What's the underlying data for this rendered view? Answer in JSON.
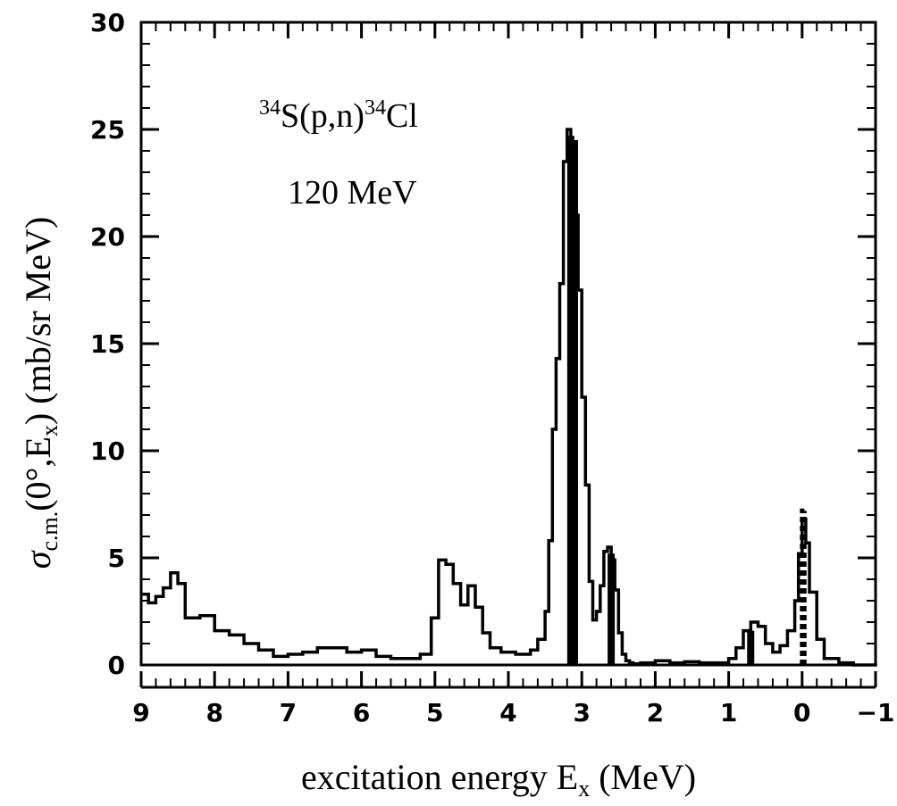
{
  "chart_data": {
    "type": "line",
    "xlabel": "excitation energy E",
    "xlabel_sub": "x",
    "xlabel_unit": " (MeV)",
    "ylabel_sigma": "σ",
    "ylabel_sub": "c.m.",
    "ylabel_rest": "(0°,E",
    "ylabel_sub2": "x",
    "ylabel_unit": ") (mb/sr MeV)",
    "annotation_reaction": {
      "sup1": "34",
      "mid": "S(p,n)",
      "sup2": "34",
      "end": "Cl"
    },
    "annotation_energy": "120 MeV",
    "xlim": [
      9,
      -1
    ],
    "ylim": [
      0,
      30
    ],
    "x_ticks": [
      9,
      8,
      7,
      6,
      5,
      4,
      3,
      2,
      1,
      0,
      -1
    ],
    "x_tick_labels": [
      "9",
      "8",
      "7",
      "6",
      "5",
      "4",
      "3",
      "2",
      "1",
      "0",
      "−1"
    ],
    "y_ticks": [
      0,
      5,
      10,
      15,
      20,
      25,
      30
    ],
    "y_tick_labels": [
      "0",
      "5",
      "10",
      "15",
      "20",
      "25",
      "30"
    ],
    "grid": false,
    "legend": "none",
    "series": [
      {
        "style": "histogram",
        "x": [
          9.0,
          8.9,
          8.8,
          8.7,
          8.6,
          8.5,
          8.4,
          8.2,
          8.0,
          7.8,
          7.6,
          7.4,
          7.2,
          7.0,
          6.8,
          6.6,
          6.4,
          6.2,
          6.0,
          5.8,
          5.6,
          5.4,
          5.2,
          5.05,
          4.95,
          4.85,
          4.75,
          4.65,
          4.55,
          4.45,
          4.35,
          4.25,
          4.1,
          3.9,
          3.7,
          3.6,
          3.5,
          3.45,
          3.4,
          3.35,
          3.3,
          3.25,
          3.2,
          3.15,
          3.1,
          3.05,
          3.0,
          2.95,
          2.9,
          2.85,
          2.8,
          2.75,
          2.7,
          2.65,
          2.6,
          2.55,
          2.5,
          2.45,
          2.4,
          2.35,
          2.3,
          2.2,
          2.0,
          1.8,
          1.6,
          1.4,
          1.2,
          1.0,
          0.9,
          0.8,
          0.7,
          0.6,
          0.5,
          0.4,
          0.3,
          0.2,
          0.1,
          0.05,
          0.0,
          -0.05,
          -0.1,
          -0.2,
          -0.3,
          -0.5,
          -0.7,
          -0.9,
          -1.0
        ],
        "y": [
          3.3,
          2.9,
          3.2,
          3.6,
          4.3,
          3.8,
          2.2,
          2.3,
          1.6,
          1.4,
          1.0,
          0.7,
          0.4,
          0.5,
          0.6,
          0.8,
          0.8,
          0.6,
          0.7,
          0.4,
          0.3,
          0.3,
          0.5,
          2.2,
          4.9,
          4.7,
          3.8,
          2.8,
          3.7,
          2.7,
          1.5,
          0.8,
          0.6,
          0.5,
          0.7,
          1.2,
          2.5,
          5.8,
          11.0,
          14.3,
          17.8,
          23.5,
          25.0,
          23.0,
          21.0,
          17.5,
          12.5,
          8.4,
          3.9,
          2.1,
          2.5,
          3.7,
          5.3,
          5.5,
          4.9,
          3.5,
          1.5,
          0.5,
          0.2,
          0.1,
          0.05,
          0.1,
          0.2,
          0.1,
          0.15,
          0.1,
          0.1,
          0.3,
          0.8,
          1.6,
          2.0,
          1.8,
          1.0,
          0.6,
          0.9,
          1.6,
          3.0,
          5.2,
          6.8,
          5.7,
          3.4,
          1.2,
          0.3,
          0.1,
          0.0,
          0.0,
          0.1
        ]
      },
      {
        "style": "bars",
        "x": [
          3.15,
          3.1,
          2.6,
          0.7
        ],
        "y": [
          24.7,
          24.5,
          5.2,
          1.6
        ]
      },
      {
        "style": "dashed-bars",
        "x": [
          0.0,
          -0.03
        ],
        "y": [
          7.3,
          7.2
        ]
      }
    ]
  }
}
